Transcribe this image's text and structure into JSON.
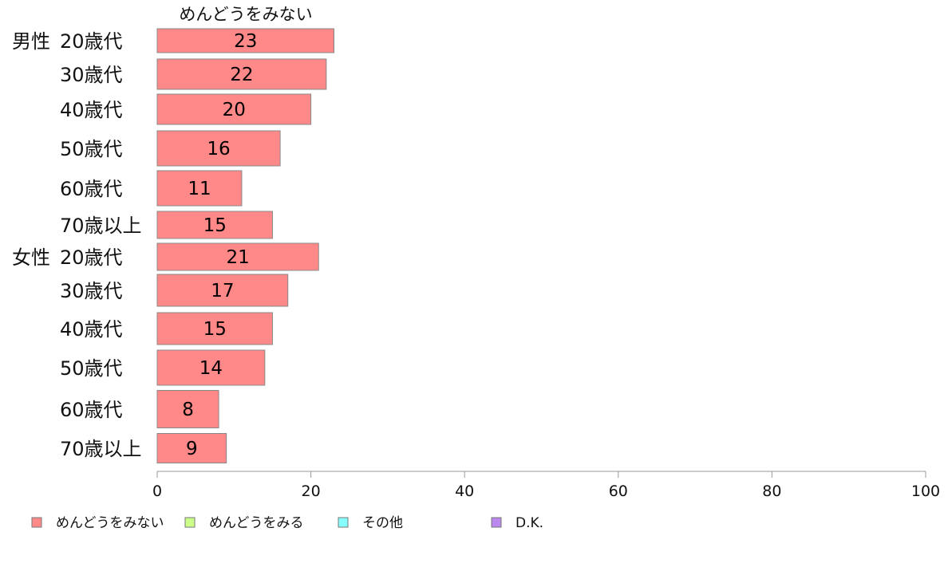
{
  "chart_data": {
    "type": "bar",
    "orientation": "horizontal",
    "series_title": "めんどうをみない",
    "groups": [
      {
        "label": "男性",
        "categories": [
          "20歳代",
          "30歳代",
          "40歳代",
          "50歳代",
          "60歳代",
          "70歳以上"
        ],
        "values": [
          23,
          22,
          20,
          16,
          11,
          15
        ]
      },
      {
        "label": "女性",
        "categories": [
          "20歳代",
          "30歳代",
          "40歳代",
          "50歳代",
          "60歳代",
          "70歳以上"
        ],
        "values": [
          21,
          17,
          15,
          14,
          8,
          9
        ]
      }
    ],
    "xlim": [
      0,
      100
    ],
    "xticks": [
      0,
      20,
      40,
      60,
      80,
      100
    ],
    "grid": false,
    "legend_position": "bottom",
    "legend": [
      {
        "name": "めんどうをみない",
        "color": "#ff8888"
      },
      {
        "name": "めんどうをみる",
        "color": "#ccff88"
      },
      {
        "name": "その他",
        "color": "#88ffff"
      },
      {
        "name": "D.K.",
        "color": "#bb88ee"
      }
    ],
    "bar_color": "#ff8888",
    "bar_edge_color": "#888888"
  }
}
